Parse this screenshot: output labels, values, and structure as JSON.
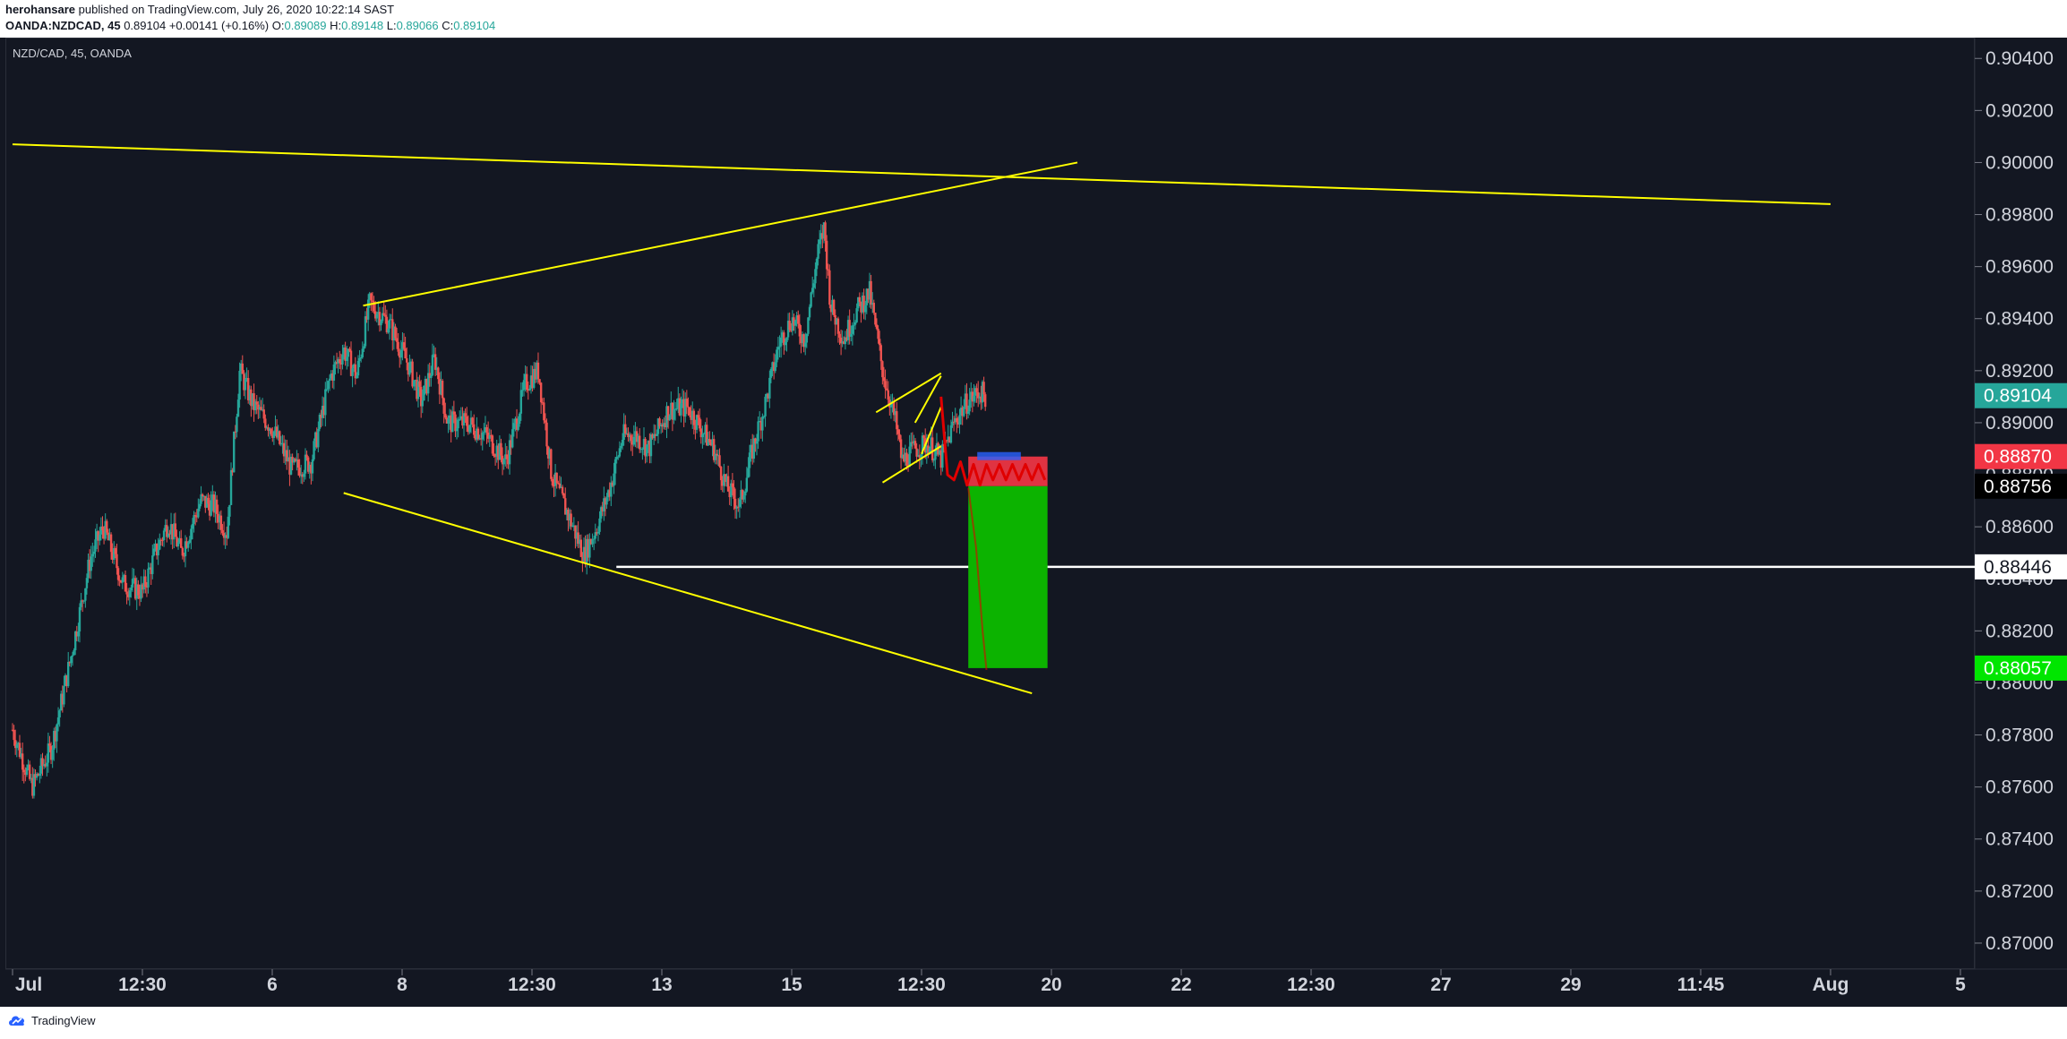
{
  "header": {
    "author": "herohansare",
    "published_text": "published on TradingView.com, July 26, 2020 10:22:14 SAST",
    "symbol": "OANDA:NZDCAD, 45",
    "last": "0.89104",
    "change": "+0.00141 (+0.16%)",
    "ohlc": [
      {
        "label": "O:",
        "value": "0.89089"
      },
      {
        "label": "H:",
        "value": "0.89148"
      },
      {
        "label": "L:",
        "value": "0.89066"
      },
      {
        "label": "C:",
        "value": "0.89104"
      }
    ]
  },
  "legend": "NZD/CAD, 45, OANDA",
  "footer": {
    "brand": "TradingView"
  },
  "colors": {
    "background": "#131722",
    "up": "#26a69a",
    "down": "#ef5350",
    "trendline": "#ffff00",
    "support": "#ffffff",
    "stop_zone": "#f23645",
    "target_zone": "#0cb300"
  },
  "chart_data": {
    "type": "candlestick",
    "title": "NZD/CAD, 45, OANDA",
    "y_ticks": [
      "0.90400",
      "0.90200",
      "0.90000",
      "0.89800",
      "0.89600",
      "0.89400",
      "0.89200",
      "0.89000",
      "0.88800",
      "0.88600",
      "0.88400",
      "0.88200",
      "0.88000",
      "0.87800",
      "0.87600",
      "0.87400",
      "0.87200",
      "0.87000"
    ],
    "x_ticks": [
      "Jul",
      "12:30",
      "6",
      "8",
      "12:30",
      "13",
      "15",
      "12:30",
      "20",
      "22",
      "12:30",
      "27",
      "29",
      "11:45",
      "Aug",
      "5"
    ],
    "price_labels": [
      {
        "value": "0.89104",
        "kind": "last_price",
        "color": "#26a69a"
      },
      {
        "value": "0.88870",
        "kind": "entry",
        "color": "#f23645"
      },
      {
        "value": "0.88756",
        "kind": "entry",
        "color": "#000000"
      },
      {
        "value": "0.88446",
        "kind": "support",
        "color": "#ffffff"
      },
      {
        "value": "0.88057",
        "kind": "target",
        "color": "#00e600"
      }
    ],
    "price_path": [
      [
        0,
        0.8782
      ],
      [
        1.5,
        0.876
      ],
      [
        3,
        0.8775
      ],
      [
        4.5,
        0.881
      ],
      [
        6,
        0.8848
      ],
      [
        7,
        0.886
      ],
      [
        8.5,
        0.8838
      ],
      [
        10,
        0.8835
      ],
      [
        11,
        0.885
      ],
      [
        12,
        0.8862
      ],
      [
        13,
        0.885
      ],
      [
        14.5,
        0.887
      ],
      [
        15.5,
        0.8868
      ],
      [
        16.5,
        0.8858
      ],
      [
        17.5,
        0.892
      ],
      [
        18.5,
        0.8907
      ],
      [
        20,
        0.8898
      ],
      [
        21.5,
        0.8882
      ],
      [
        23,
        0.8885
      ],
      [
        24.5,
        0.8918
      ],
      [
        25.5,
        0.8928
      ],
      [
        26.5,
        0.8918
      ],
      [
        27.5,
        0.8946
      ],
      [
        29,
        0.8938
      ],
      [
        30.5,
        0.8922
      ],
      [
        31.5,
        0.8908
      ],
      [
        32.5,
        0.8925
      ],
      [
        33.5,
        0.89
      ],
      [
        35,
        0.89
      ],
      [
        36.5,
        0.8895
      ],
      [
        38,
        0.8885
      ],
      [
        39.5,
        0.8915
      ],
      [
        40.5,
        0.892
      ],
      [
        41.5,
        0.888
      ],
      [
        43,
        0.8862
      ],
      [
        44,
        0.8849
      ],
      [
        45,
        0.886
      ],
      [
        46,
        0.8875
      ],
      [
        47,
        0.8895
      ],
      [
        48,
        0.8895
      ],
      [
        49,
        0.889
      ],
      [
        50.5,
        0.8905
      ],
      [
        52,
        0.8906
      ],
      [
        53,
        0.8898
      ],
      [
        54,
        0.889
      ],
      [
        55,
        0.8875
      ],
      [
        56,
        0.8868
      ],
      [
        57,
        0.889
      ],
      [
        58,
        0.8908
      ],
      [
        59,
        0.893
      ],
      [
        60,
        0.894
      ],
      [
        61,
        0.8932
      ],
      [
        62,
        0.8965
      ],
      [
        62.5,
        0.8975
      ],
      [
        63,
        0.8945
      ],
      [
        64,
        0.8932
      ],
      [
        65,
        0.8943
      ],
      [
        66,
        0.895
      ],
      [
        67,
        0.892
      ],
      [
        68,
        0.89
      ],
      [
        68.5,
        0.8885
      ],
      [
        69.5,
        0.889
      ],
      [
        70.5,
        0.8892
      ],
      [
        71.5,
        0.8886
      ],
      [
        72.5,
        0.89
      ],
      [
        73.5,
        0.8908
      ],
      [
        74.5,
        0.8912
      ],
      [
        75,
        0.891
      ]
    ],
    "price_range": [
      0.869,
      0.9048
    ],
    "grid": false,
    "annotations": {
      "trendlines": [
        {
          "from": [
            0,
            0.9007
          ],
          "to": [
            140,
            0.8984
          ],
          "color": "#ffff00"
        },
        {
          "from": [
            27,
            0.8945
          ],
          "to": [
            82,
            0.9
          ],
          "color": "#ffff00"
        },
        {
          "from": [
            25.5,
            0.8873
          ],
          "to": [
            78.5,
            0.8796
          ],
          "color": "#ffff00"
        },
        {
          "from": [
            66.5,
            0.8904
          ],
          "to": [
            71.5,
            0.8919
          ],
          "color": "#ffff00"
        },
        {
          "from": [
            67,
            0.8877
          ],
          "to": [
            71.5,
            0.8891
          ],
          "color": "#ffff00"
        },
        {
          "from": [
            69.5,
            0.89
          ],
          "to": [
            71.5,
            0.8918
          ],
          "color": "#ffff00"
        },
        {
          "from": [
            70,
            0.8888
          ],
          "to": [
            71.5,
            0.8906
          ],
          "color": "#ffff00"
        }
      ],
      "support_line": {
        "from": 46.5,
        "value": 0.88446,
        "color": "#ffffff"
      },
      "projection": [
        [
          71.5,
          0.891
        ],
        [
          72,
          0.888
        ],
        [
          72.5,
          0.8878
        ],
        [
          73,
          0.8885
        ],
        [
          73.5,
          0.8876
        ],
        [
          74,
          0.8884
        ],
        [
          74.5,
          0.8876
        ],
        [
          75,
          0.8884
        ],
        [
          75.5,
          0.8878
        ],
        [
          76,
          0.8884
        ],
        [
          76.5,
          0.8878
        ],
        [
          77,
          0.8884
        ],
        [
          77.5,
          0.8878
        ],
        [
          78,
          0.8884
        ],
        [
          78.5,
          0.8878
        ],
        [
          79,
          0.8884
        ],
        [
          79.5,
          0.8878
        ]
      ],
      "position": {
        "x_from": 73.6,
        "x_to": 79.7,
        "stop": 0.8887,
        "entry": 0.88756,
        "target": 0.88057
      },
      "position_tail": [
        [
          73.6,
          0.8875
        ],
        [
          74.2,
          0.8852
        ],
        [
          74.7,
          0.882
        ],
        [
          75,
          0.8805
        ]
      ]
    }
  }
}
